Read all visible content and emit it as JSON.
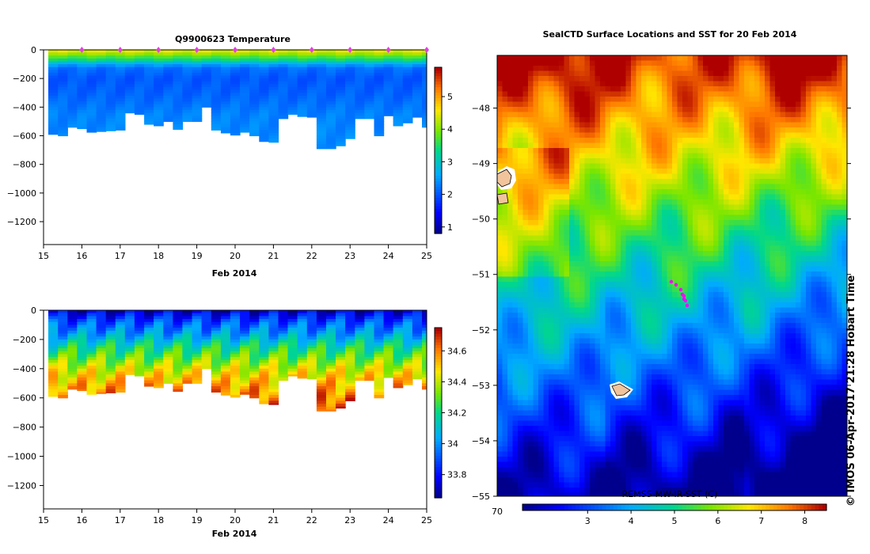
{
  "chart_data": [
    {
      "type": "heatmap",
      "title": "Q9900623  Temperature",
      "xlabel": "Feb 2014",
      "ylabel": "",
      "x_ticks": [
        15,
        16,
        17,
        18,
        19,
        20,
        21,
        22,
        23,
        24,
        25
      ],
      "y_ticks": [
        0,
        -200,
        -400,
        -600,
        -800,
        -1000,
        -1200
      ],
      "xlim": [
        15,
        25
      ],
      "ylim": [
        -1360,
        0
      ],
      "profile_days": [
        15.25,
        15.5,
        15.75,
        16.0,
        16.25,
        16.5,
        16.75,
        17.0,
        17.25,
        17.5,
        17.75,
        18.0,
        18.25,
        18.5,
        18.75,
        19.0,
        19.25,
        19.5,
        19.75,
        20.0,
        20.25,
        20.5,
        20.75,
        21.0,
        21.25,
        21.5,
        21.75,
        22.0,
        22.25,
        22.5,
        22.75,
        23.0,
        23.25,
        23.5,
        23.75,
        24.0,
        24.25,
        24.5,
        24.75,
        25.0
      ],
      "profile_max_depth": [
        590,
        600,
        540,
        550,
        575,
        570,
        565,
        560,
        440,
        450,
        520,
        530,
        500,
        555,
        500,
        500,
        400,
        560,
        580,
        595,
        575,
        600,
        640,
        645,
        480,
        450,
        465,
        470,
        690,
        690,
        670,
        620,
        480,
        480,
        600,
        460,
        530,
        510,
        470,
        540
      ],
      "markers_day": [
        16,
        17,
        18,
        19,
        20,
        21,
        22,
        23,
        24,
        25
      ],
      "colorbar": {
        "min": 0.8,
        "max": 5.9,
        "ticks": [
          1,
          2,
          3,
          4,
          5
        ],
        "label": ""
      },
      "profile": [
        {
          "depth": 0,
          "value": 4.6
        },
        {
          "depth": 60,
          "value": 3.6
        },
        {
          "depth": 120,
          "value": 2.2
        },
        {
          "depth": 200,
          "value": 2.0
        },
        {
          "depth": 320,
          "value": 2.1
        },
        {
          "depth": 450,
          "value": 2.3
        },
        {
          "depth": 700,
          "value": 2.4
        }
      ]
    },
    {
      "type": "heatmap",
      "title": "",
      "xlabel": "Feb 2014",
      "ylabel": "",
      "x_ticks": [
        15,
        16,
        17,
        18,
        19,
        20,
        21,
        22,
        23,
        24,
        25
      ],
      "y_ticks": [
        0,
        -200,
        -400,
        -600,
        -800,
        -1000,
        -1200
      ],
      "xlim": [
        15,
        25
      ],
      "ylim": [
        -1360,
        0
      ],
      "colorbar": {
        "min": 33.65,
        "max": 34.75,
        "ticks": [
          33.8,
          34,
          34.2,
          34.4,
          34.6
        ],
        "label": ""
      },
      "profile": [
        {
          "depth": 0,
          "value": 33.72
        },
        {
          "depth": 80,
          "value": 33.9
        },
        {
          "depth": 160,
          "value": 34.02
        },
        {
          "depth": 240,
          "value": 34.18
        },
        {
          "depth": 330,
          "value": 34.32
        },
        {
          "depth": 420,
          "value": 34.45
        },
        {
          "depth": 520,
          "value": 34.55
        },
        {
          "depth": 700,
          "value": 34.7
        }
      ]
    },
    {
      "type": "heatmap",
      "title": "SealCTD Surface Locations and SST for 20 Feb 2014",
      "xlabel": "",
      "ylabel": "",
      "y_ticks": [
        -48,
        -49,
        -50,
        -51,
        -52,
        -53,
        -54,
        -55
      ],
      "ylim": [
        -55,
        -47.05
      ],
      "x_tick_left": "70",
      "colorbar": {
        "min": 1.5,
        "max": 8.5,
        "ticks": [
          3,
          4,
          5,
          6,
          7,
          8
        ],
        "label": "REMSS-MW-IR-SST (C)"
      },
      "field_description": "warm north, cold south-east, seal track near -51.5"
    }
  ],
  "credit": "© IMOS 06-Apr-2017 21:28 Hobart Time"
}
